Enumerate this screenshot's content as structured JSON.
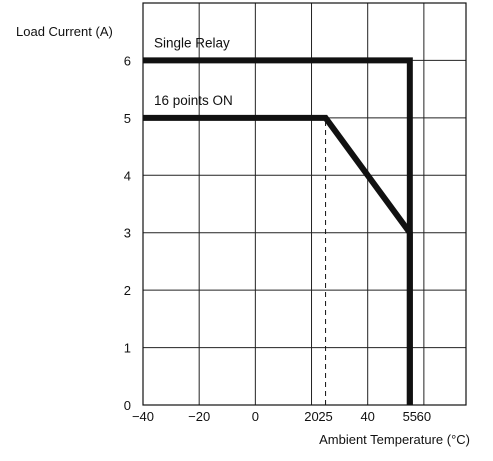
{
  "chart_data": {
    "type": "line",
    "title": "",
    "ylabel": "Load Current (A)",
    "xlabel": "Ambient Temperature (°C)",
    "xlim": [
      -40,
      75
    ],
    "ylim": [
      0,
      7
    ],
    "x_ticks": [
      -40,
      -20,
      0,
      20,
      25,
      40,
      55,
      60
    ],
    "x_tick_labels": [
      "−40",
      "−20",
      "0",
      "20",
      "25",
      "40",
      "55",
      "60"
    ],
    "y_ticks": [
      0,
      1,
      2,
      3,
      4,
      5,
      6
    ],
    "y_tick_labels": [
      "0",
      "1",
      "2",
      "3",
      "4",
      "5",
      "6"
    ],
    "x_gridlines": [
      -40,
      -20,
      0,
      20,
      40,
      60
    ],
    "y_gridlines": [
      1,
      2,
      3,
      4,
      5,
      6
    ],
    "grid": true,
    "series": [
      {
        "name": "Single Relay",
        "x": [
          -40,
          55,
          55
        ],
        "y": [
          6,
          6,
          0
        ]
      },
      {
        "name": "16 points ON",
        "x": [
          -40,
          25,
          55,
          55
        ],
        "y": [
          5,
          5,
          3,
          0
        ]
      }
    ],
    "guides": [
      {
        "x": 25,
        "from_y": 0,
        "to_y": 5,
        "style": "dashed"
      }
    ],
    "colors": {
      "line": "#111111",
      "grid": "#222222",
      "background": "#ffffff"
    }
  }
}
